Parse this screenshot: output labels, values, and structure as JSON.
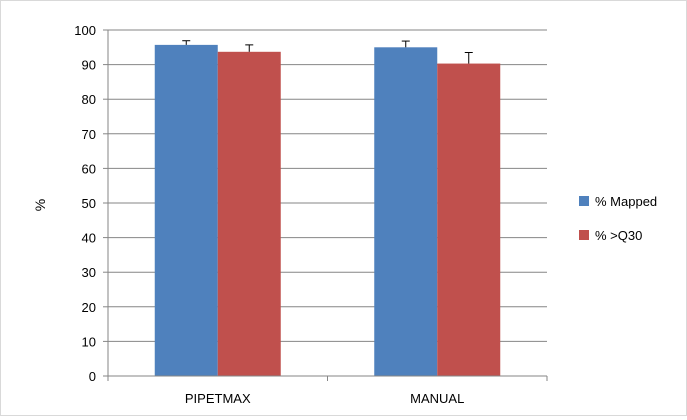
{
  "chart_data": {
    "type": "bar",
    "title": "",
    "xlabel": "",
    "ylabel": "%",
    "ylim": [
      0,
      100
    ],
    "yticks": [
      0,
      10,
      20,
      30,
      40,
      50,
      60,
      70,
      80,
      90,
      100
    ],
    "grid": true,
    "legend_position": "right",
    "categories": [
      "PIPETMAX",
      "MANUAL"
    ],
    "series": [
      {
        "name": "% Mapped",
        "color": "#4f81bd",
        "values": [
          95.7,
          95.0
        ],
        "errors": [
          1.2,
          1.8
        ]
      },
      {
        "name": "% >Q30",
        "color": "#c0504d",
        "values": [
          93.7,
          90.3
        ],
        "errors": [
          2.0,
          3.2
        ]
      }
    ]
  }
}
